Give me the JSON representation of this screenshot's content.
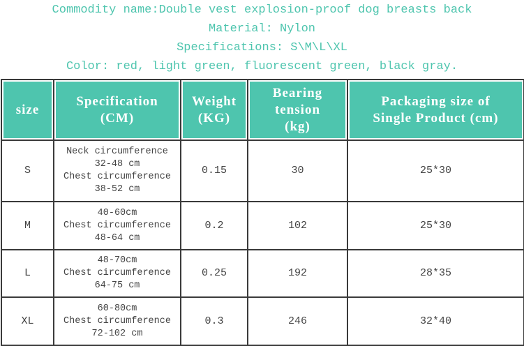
{
  "header": {
    "lines": [
      "Commodity name:Double vest explosion-proof dog breasts back",
      "Material: Nylon",
      "Specifications: S\\M\\L\\XL",
      "Color: red, light green, fluorescent green, black gray."
    ]
  },
  "table": {
    "columns": [
      [
        "size"
      ],
      [
        "Specification",
        "(CM)"
      ],
      [
        "Weight",
        "(KG)"
      ],
      [
        "Bearing",
        "tension",
        "(kg)"
      ],
      [
        "Packaging size of",
        "Single Product (cm)"
      ]
    ],
    "rows": [
      [
        [
          "S"
        ],
        [
          "Neck circumference",
          "32-48 cm",
          "Chest circumference",
          "38-52 cm"
        ],
        [
          "0.15"
        ],
        [
          "30"
        ],
        [
          "25*30"
        ]
      ],
      [
        [
          "M"
        ],
        [
          "40-60cm",
          "Chest circumference",
          "48-64 cm"
        ],
        [
          "0.2"
        ],
        [
          "102"
        ],
        [
          "25*30"
        ]
      ],
      [
        [
          "L"
        ],
        [
          "48-70cm",
          "Chest circumference",
          "64-75 cm"
        ],
        [
          "0.25"
        ],
        [
          "192"
        ],
        [
          "28*35"
        ]
      ],
      [
        [
          "XL"
        ],
        [
          "60-80cm",
          "Chest circumference",
          "72-102 cm"
        ],
        [
          "0.3"
        ],
        [
          "246"
        ],
        [
          "32*40"
        ]
      ]
    ]
  }
}
